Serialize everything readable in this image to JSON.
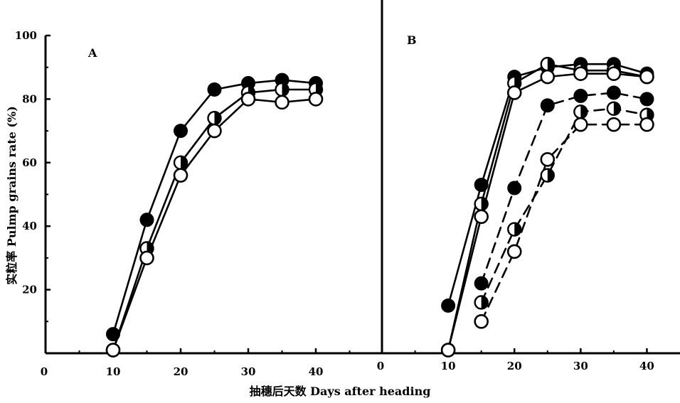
{
  "figure": {
    "ylabel": "实粒率  Pulmp grains rate (%)",
    "xlabel": "抽穗后天数  Days after heading"
  },
  "chart_data": [
    {
      "type": "line",
      "panel_label": "A",
      "x": [
        10,
        15,
        20,
        25,
        30,
        35,
        40
      ],
      "xticks": [
        "0",
        "10",
        "20",
        "30",
        "40"
      ],
      "yticks": [
        "0",
        "20",
        "40",
        "60",
        "80",
        "100"
      ],
      "xlim": [
        0,
        50
      ],
      "ylim": [
        0,
        100
      ],
      "series": [
        {
          "marker": "filled",
          "line_style": "solid",
          "values": [
            6,
            42,
            70,
            83,
            85,
            86,
            85
          ]
        },
        {
          "marker": "half-filled",
          "line_style": "solid",
          "values": [
            1,
            33,
            60,
            74,
            82,
            83,
            83
          ]
        },
        {
          "marker": "open",
          "line_style": "solid",
          "values": [
            1,
            30,
            56,
            70,
            80,
            79,
            80
          ]
        }
      ]
    },
    {
      "type": "line",
      "panel_label": "B",
      "x": [
        10,
        15,
        20,
        25,
        30,
        35,
        40
      ],
      "xticks": [
        "0",
        "10",
        "20",
        "30",
        "40"
      ],
      "xlim": [
        0,
        45
      ],
      "ylim": [
        0,
        100
      ],
      "series": [
        {
          "marker": "filled",
          "line_style": "solid",
          "values": [
            15,
            53,
            87,
            90,
            91,
            91,
            88
          ]
        },
        {
          "marker": "half-filled",
          "line_style": "solid",
          "values": [
            1,
            47,
            85,
            91,
            89,
            89,
            87
          ]
        },
        {
          "marker": "open",
          "line_style": "solid",
          "values": [
            1,
            43,
            82,
            87,
            88,
            88,
            87
          ]
        },
        {
          "marker": "filled",
          "line_style": "dashed",
          "values": [
            null,
            22,
            52,
            78,
            81,
            82,
            80
          ]
        },
        {
          "marker": "half-filled",
          "line_style": "dashed",
          "values": [
            null,
            16,
            39,
            56,
            76,
            77,
            75
          ]
        },
        {
          "marker": "open",
          "line_style": "dashed",
          "values": [
            null,
            10,
            32,
            61,
            72,
            72,
            72
          ]
        }
      ]
    }
  ]
}
